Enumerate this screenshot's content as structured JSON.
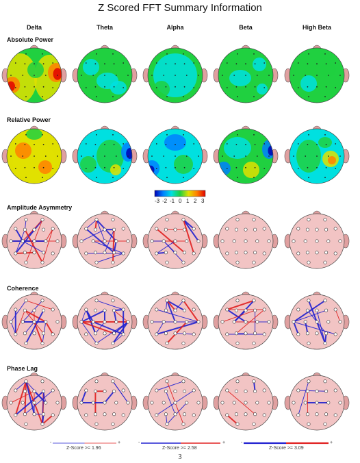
{
  "title": "Z Scored FFT Summary Information",
  "bands": [
    "Delta",
    "Theta",
    "Alpha",
    "Beta",
    "High Beta"
  ],
  "sections": {
    "absolute_power": "Absolute Power",
    "relative_power": "Relative Power",
    "amplitude_asymmetry": "Amplitude Asymmetry",
    "coherence": "Coherence",
    "phase_lag": "Phase Lag"
  },
  "colorbar": {
    "ticks": [
      "-3",
      "-2",
      "-1",
      "0",
      "1",
      "2",
      "3"
    ],
    "colors": [
      "#0000b4",
      "#0080ff",
      "#00e0e0",
      "#20d040",
      "#e0e000",
      "#ff8000",
      "#e00000"
    ]
  },
  "legend": {
    "items": [
      {
        "label": "Z-Score >= 1.96",
        "minus": "-",
        "plus": "+"
      },
      {
        "label": "Z-Score >= 2.58",
        "minus": "-",
        "plus": "+"
      },
      {
        "label": "Z-Score >= 3.09",
        "minus": "-",
        "plus": "+"
      }
    ],
    "positive_color": "#e02020",
    "negative_color": "#2020d0"
  },
  "page_number": "3",
  "colors": {
    "head_pink": "#f2c4c4",
    "ear": "#e8a8a8",
    "power_green": "#30d060"
  }
}
